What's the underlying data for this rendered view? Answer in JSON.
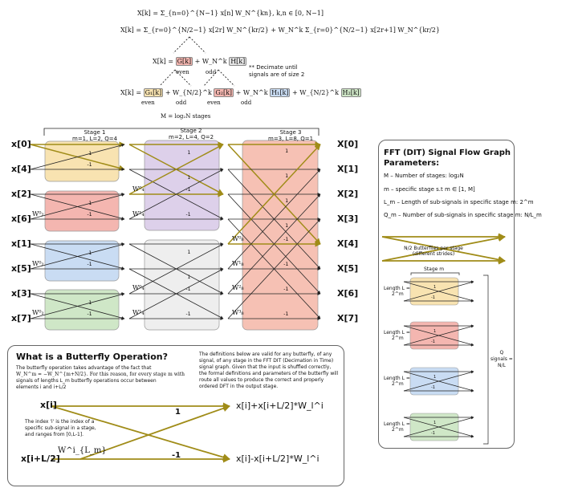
{
  "equations": {
    "eq1": "X[k] = Σ_{n=0}^{N−1} x[n] W_N^{kn}, k,n ∈ [0, N−1]",
    "eq2": "X[k] = Σ_{r=0}^{N/2−1} x[2r] W_N^{kr/2} + W_N^k Σ_{r=0}^{N/2−1} x[2r+1] W_N^{kr/2}",
    "eq3_lhs": "X[k] =",
    "eq3_g": "G[k]",
    "eq3_plus": "+ W_N^k",
    "eq3_h": "H[k]",
    "even": "even",
    "odd": "odd",
    "eq4_lhs": "X[k] =",
    "eq4_g1": "G₁[k]",
    "eq4_w1": "+ W_{N/2}^k",
    "eq4_g2": "G₂[k]",
    "eq4_w2": "+ W_N^k",
    "eq4_h1": "H₁[k]",
    "eq4_w3": "+ W_{N/2}^k",
    "eq4_h2": "H₂[k]",
    "decimate_note_1": "** Decimate until",
    "decimate_note_2": "signals are of size 2",
    "m_label": "M = log₂N stages"
  },
  "stages": [
    {
      "title": "Stage 1",
      "params": "m=1, L=2, Q=4"
    },
    {
      "title": "Stage 2",
      "params": "m=2, L=4, Q=2"
    },
    {
      "title": "Stage 3",
      "params": "m=3, L=8, Q=1"
    }
  ],
  "inputs": [
    "x[0]",
    "x[4]",
    "x[2]",
    "x[6]",
    "x[1]",
    "x[5]",
    "x[3]",
    "x[7]"
  ],
  "outputs": [
    "X[0]",
    "X[1]",
    "X[2]",
    "X[3]",
    "X[4]",
    "X[5]",
    "X[6]",
    "X[7]"
  ],
  "twiddles": {
    "s1": "W⁰₂",
    "s2a": "W⁰₄",
    "s2b": "W¹₄",
    "s3a": "W⁰₈",
    "s3b": "W¹₈",
    "s3c": "W²₈",
    "s3d": "W³₈"
  },
  "weights": {
    "one": "1",
    "minus_one": "-1"
  },
  "butterfly_panel": {
    "title": "What is a Butterfly Operation?",
    "desc_1": "The butterfly operation takes advantage of the fact that",
    "desc_2": "W_N^m = −W_N^{m+N/2}. For this reason, for every stage m with",
    "desc_3": "signals of lengths L_m butterfly operations occur between",
    "desc_4": "elements i and i+L/2",
    "right_1": "The definitions below are valid for any butterfly, of any",
    "right_2": "signal, of any stage in the FFT DIT (Decimation in Time)",
    "right_3": "signal graph. Given that the input is shuffled correctly,",
    "right_4": "the formal definitions and parameters of the butterfly will",
    "right_5": "route all values to produce the correct and properly",
    "right_6": "ordered DFT in the output stage.",
    "in_top": "x[i]",
    "in_bottom": "x[i+L/2]",
    "out_top": "x[i]+x[i+L/2]*W_l^i",
    "out_bottom": "x[i]-x[i+L/2]*W_l^i",
    "index_note_1": "The index 'i' is the index of a",
    "index_note_2": "specific sub-signal in a stage,",
    "index_note_3": "and ranges from [0,L-1].",
    "twiddle": "W^i_{L_m}",
    "w_one": "1",
    "w_minus_one": "-1"
  },
  "params_panel": {
    "title_1": "FFT (DIT) Signal Flow Graph",
    "title_2": "Parameters:",
    "line_M": "M – Number of stages: log₂N",
    "line_m": "m – specific stage s.t m ∈ [1, M]",
    "line_L": "L_m – Length of sub-signals in specific stage m: 2^m",
    "line_Q": "Q_m – Number of sub-signals in specific stage m: N/L_m",
    "butterflies_1": "N/2 Butterflies per stage",
    "butterflies_2": "(different strides)",
    "stage_m": "Stage m",
    "length_1": "Length L =",
    "length_2": "2^m",
    "q_1": "Q",
    "q_2": "signals =",
    "q_3": "N/L",
    "one": "1",
    "minus_one": "-1"
  },
  "colors": {
    "orange": "#f8e3b1",
    "red": "#f4b6b0",
    "blue": "#c9dcf3",
    "green": "#cfe7c7",
    "purple": "#ddd0ea",
    "gray": "#eeeeee",
    "salmon": "#f6c1b4",
    "highlight_line": "#a08c18",
    "line": "#222222"
  }
}
